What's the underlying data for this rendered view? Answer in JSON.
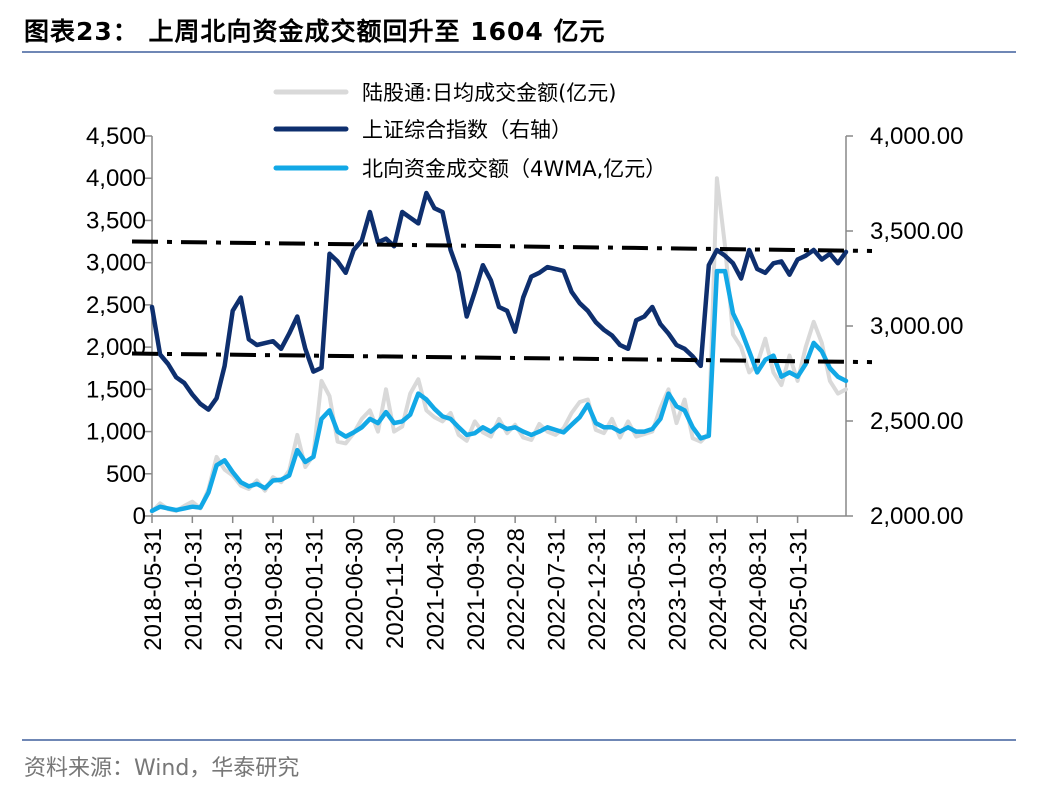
{
  "header": {
    "title": "图表23：  上周北向资金成交额回升至 1604 亿元"
  },
  "footer": {
    "source": "资料来源：Wind，华泰研究"
  },
  "chart_data": {
    "type": "line",
    "title": "上周北向资金成交额回升至 1604 亿元",
    "x_ticks": [
      "2018-05-31",
      "2018-10-31",
      "2019-03-31",
      "2019-08-31",
      "2020-01-31",
      "2020-06-30",
      "2020-11-30",
      "2021-04-30",
      "2021-09-30",
      "2022-02-28",
      "2022-07-31",
      "2022-12-31",
      "2023-05-31",
      "2023-10-31",
      "2024-03-31",
      "2024-08-31",
      "2025-01-31"
    ],
    "y_left": {
      "min": 0,
      "max": 4500,
      "ticks": [
        "0",
        "500",
        "1,000",
        "1,500",
        "2,000",
        "2,500",
        "3,000",
        "3,500",
        "4,000",
        "4,500"
      ]
    },
    "y_right": {
      "min": 2000,
      "max": 4000,
      "ticks": [
        "2,000.00",
        "2,500.00",
        "3,000.00",
        "3,500.00",
        "4,000.00"
      ]
    },
    "legend": [
      {
        "label": "陆股通:日均成交金额(亿元)",
        "color": "#d9d9d9"
      },
      {
        "label": "上证综合指数（右轴）",
        "color": "#0e2f6e"
      },
      {
        "label": "北向资金成交额（4WMA,亿元）",
        "color": "#12a8e6"
      }
    ],
    "series": [
      {
        "name": "上证综合指数（右轴）",
        "axis": "right",
        "color": "#0e2f6e",
        "months": [
          0,
          1,
          2,
          3,
          4,
          5,
          6,
          7,
          8,
          9,
          10,
          11,
          12,
          13,
          14,
          15,
          16,
          17,
          18,
          19,
          20,
          21,
          22,
          23,
          24,
          25,
          26,
          27,
          28,
          29,
          30,
          31,
          32,
          33,
          34,
          35,
          36,
          37,
          38,
          39,
          40,
          41,
          42,
          43,
          44,
          45,
          46,
          47,
          48,
          49,
          50,
          51,
          52,
          53,
          54,
          55,
          56,
          57,
          58,
          59,
          60,
          61,
          62,
          63,
          64,
          65,
          66,
          67,
          68,
          69,
          70,
          71,
          72,
          73,
          74,
          75,
          76,
          77,
          78,
          79,
          80,
          81,
          82,
          83,
          84,
          85,
          86
        ],
        "values": [
          3100,
          2850,
          2800,
          2730,
          2700,
          2640,
          2590,
          2560,
          2620,
          2790,
          3080,
          3150,
          2930,
          2900,
          2910,
          2920,
          2880,
          2960,
          3050,
          2880,
          2760,
          2780,
          3380,
          3340,
          3280,
          3400,
          3450,
          3600,
          3440,
          3460,
          3420,
          3600,
          3570,
          3540,
          3700,
          3620,
          3600,
          3400,
          3280,
          3050,
          3180,
          3320,
          3240,
          3100,
          3080,
          2970,
          3150,
          3260,
          3280,
          3310,
          3300,
          3290,
          3180,
          3120,
          3080,
          3020,
          2980,
          2950,
          2900,
          2880,
          3030,
          3050,
          3100,
          3010,
          2960,
          2900,
          2880,
          2840,
          2790,
          3320,
          3400,
          3370,
          3330,
          3250,
          3400,
          3300,
          3280,
          3330,
          3340,
          3270,
          3350,
          3370,
          3400,
          3350,
          3380,
          3330,
          3390
        ]
      },
      {
        "name": "北向资金成交额（4WMA,亿元）",
        "axis": "left",
        "color": "#12a8e6",
        "months": [
          0,
          1,
          2,
          3,
          4,
          5,
          6,
          7,
          8,
          9,
          10,
          11,
          12,
          13,
          14,
          15,
          16,
          17,
          18,
          19,
          20,
          21,
          22,
          23,
          24,
          25,
          26,
          27,
          28,
          29,
          30,
          31,
          32,
          33,
          34,
          35,
          36,
          37,
          38,
          39,
          40,
          41,
          42,
          43,
          44,
          45,
          46,
          47,
          48,
          49,
          50,
          51,
          52,
          53,
          54,
          55,
          56,
          57,
          58,
          59,
          60,
          61,
          62,
          63,
          64,
          65,
          66,
          67,
          68,
          69,
          70,
          71,
          72,
          73,
          74,
          75,
          76,
          77,
          78,
          79,
          80,
          81,
          82,
          83,
          84,
          85,
          86
        ],
        "values": [
          60,
          110,
          90,
          70,
          90,
          110,
          100,
          280,
          600,
          660,
          520,
          400,
          350,
          380,
          330,
          420,
          430,
          480,
          780,
          640,
          700,
          1150,
          1250,
          1000,
          940,
          990,
          1050,
          1150,
          1100,
          1230,
          1100,
          1120,
          1200,
          1450,
          1380,
          1270,
          1180,
          1150,
          1050,
          960,
          980,
          1050,
          1000,
          1080,
          1030,
          1050,
          1000,
          960,
          1000,
          1050,
          1020,
          990,
          1080,
          1170,
          1320,
          1100,
          1050,
          1050,
          1000,
          1050,
          1000,
          1000,
          1030,
          1150,
          1450,
          1300,
          1250,
          1050,
          920,
          950,
          2900,
          2900,
          2400,
          2200,
          1950,
          1700,
          1850,
          1900,
          1650,
          1700,
          1650,
          1800,
          2050,
          1950,
          1750,
          1650,
          1600
        ]
      },
      {
        "name": "陆股通:日均成交金额(亿元)",
        "axis": "left",
        "color": "#d9d9d9",
        "months": [
          0,
          1,
          2,
          3,
          4,
          5,
          6,
          7,
          8,
          9,
          10,
          11,
          12,
          13,
          14,
          15,
          16,
          17,
          18,
          19,
          20,
          21,
          22,
          23,
          24,
          25,
          26,
          27,
          28,
          29,
          30,
          31,
          32,
          33,
          34,
          35,
          36,
          37,
          38,
          39,
          40,
          41,
          42,
          43,
          44,
          45,
          46,
          47,
          48,
          49,
          50,
          51,
          52,
          53,
          54,
          55,
          56,
          57,
          58,
          59,
          60,
          61,
          62,
          63,
          64,
          65,
          66,
          67,
          68,
          69,
          70,
          71,
          72,
          73,
          74,
          75,
          76,
          77,
          78,
          79,
          80,
          81,
          82,
          83,
          84,
          85,
          86
        ],
        "values": [
          50,
          150,
          80,
          60,
          120,
          170,
          90,
          320,
          700,
          550,
          480,
          360,
          320,
          420,
          300,
          460,
          400,
          540,
          960,
          580,
          720,
          1600,
          1420,
          880,
          860,
          980,
          1150,
          1250,
          1000,
          1500,
          1000,
          1060,
          1450,
          1620,
          1250,
          1170,
          1120,
          1220,
          960,
          890,
          1120,
          990,
          940,
          1150,
          980,
          1080,
          930,
          900,
          1090,
          1000,
          960,
          1040,
          1220,
          1350,
          1380,
          1020,
          980,
          1150,
          930,
          1120,
          940,
          970,
          1000,
          1280,
          1500,
          1100,
          1380,
          920,
          880,
          980,
          4000,
          3200,
          2150,
          2000,
          1700,
          1800,
          2100,
          1700,
          1550,
          1900,
          1600,
          2000,
          2300,
          2050,
          1600,
          1450,
          1500
        ]
      }
    ],
    "trend_lines": [
      {
        "axis": "right",
        "start": 3445,
        "end": 3395
      },
      {
        "axis": "right",
        "start": 2855,
        "end": 2810
      }
    ]
  }
}
